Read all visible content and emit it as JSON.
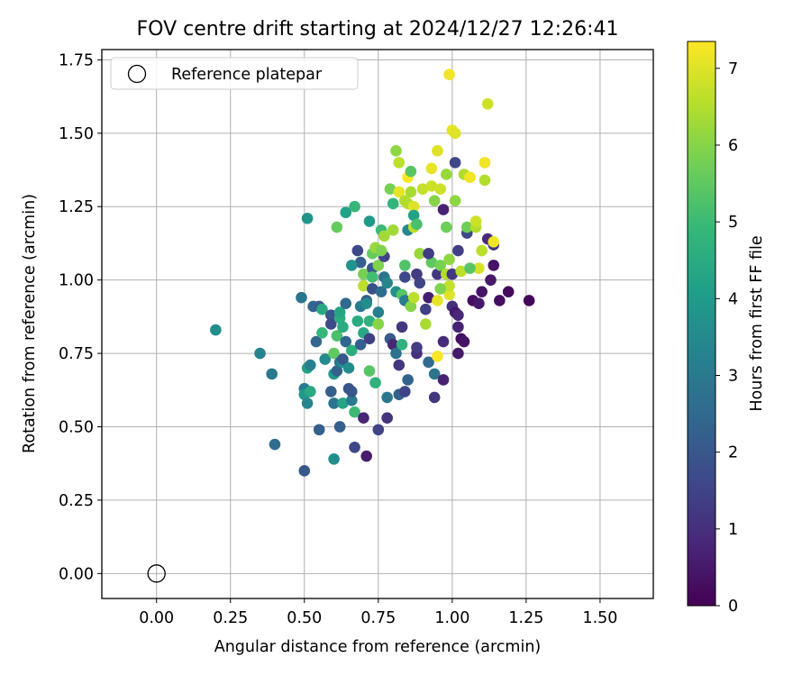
{
  "chart_data": {
    "type": "scatter",
    "title": "FOV centre drift starting at 2024/12/27 12:26:41",
    "xlabel": "Angular distance from reference (arcmin)",
    "ylabel": "Rotation from reference (arcmin)",
    "xlim": [
      -0.185,
      1.68
    ],
    "ylim": [
      -0.085,
      1.785
    ],
    "xticks": [
      "0.00",
      "0.25",
      "0.50",
      "0.75",
      "1.00",
      "1.25",
      "1.50"
    ],
    "yticks": [
      "0.00",
      "0.25",
      "0.50",
      "0.75",
      "1.00",
      "1.25",
      "1.50",
      "1.75"
    ],
    "grid": true,
    "legend": {
      "position": "top-left",
      "label": "Reference platepar"
    },
    "reference_point": {
      "x": 0.0,
      "y": 0.0
    },
    "colorbar": {
      "label": "Hours from first FF file",
      "colormap": "viridis",
      "range": [
        0,
        7.35
      ],
      "ticks": [
        "0",
        "1",
        "2",
        "3",
        "4",
        "5",
        "6",
        "7"
      ],
      "stops": [
        "#440154",
        "#482878",
        "#3e4989",
        "#31688e",
        "#26828e",
        "#1f9e89",
        "#35b779",
        "#6ece58",
        "#b5de2b",
        "#fde725"
      ]
    },
    "points": [
      [
        0.2,
        0.83,
        3.6
      ],
      [
        0.35,
        0.75,
        3.3
      ],
      [
        0.39,
        0.68,
        3.0
      ],
      [
        0.4,
        0.44,
        2.6
      ],
      [
        0.49,
        0.94,
        2.9
      ],
      [
        0.5,
        0.63,
        3.0
      ],
      [
        0.5,
        0.61,
        3.9
      ],
      [
        0.51,
        0.58,
        3.4
      ],
      [
        0.51,
        0.7,
        4.2
      ],
      [
        0.52,
        0.71,
        3.2
      ],
      [
        0.51,
        1.21,
        3.8
      ],
      [
        0.5,
        0.35,
        2.0
      ],
      [
        0.52,
        0.62,
        4.4
      ],
      [
        0.53,
        0.91,
        2.4
      ],
      [
        0.54,
        0.79,
        2.4
      ],
      [
        0.55,
        0.49,
        2.2
      ],
      [
        0.55,
        0.91,
        2.1
      ],
      [
        0.56,
        0.9,
        4.4
      ],
      [
        0.56,
        0.82,
        4.9
      ],
      [
        0.57,
        0.73,
        3.5
      ],
      [
        0.59,
        0.62,
        2.2
      ],
      [
        0.59,
        0.88,
        2.0
      ],
      [
        0.59,
        0.85,
        1.7
      ],
      [
        0.6,
        0.68,
        4.0
      ],
      [
        0.6,
        0.58,
        2.8
      ],
      [
        0.6,
        0.39,
        3.6
      ],
      [
        0.6,
        0.75,
        5.5
      ],
      [
        0.61,
        0.81,
        5.2
      ],
      [
        0.61,
        0.69,
        2.3
      ],
      [
        0.61,
        1.18,
        5.6
      ],
      [
        0.62,
        0.87,
        4.6
      ],
      [
        0.62,
        0.89,
        4.3
      ],
      [
        0.62,
        0.72,
        2.8
      ],
      [
        0.62,
        0.5,
        2.2
      ],
      [
        0.63,
        0.72,
        3.8
      ],
      [
        0.63,
        0.84,
        4.5
      ],
      [
        0.63,
        0.73,
        2.0
      ],
      [
        0.63,
        0.58,
        4.3
      ],
      [
        0.64,
        1.23,
        4.2
      ],
      [
        0.64,
        0.79,
        2.4
      ],
      [
        0.65,
        0.63,
        1.9
      ],
      [
        0.65,
        0.7,
        3.6
      ],
      [
        0.66,
        0.76,
        4.6
      ],
      [
        0.66,
        0.59,
        3.0
      ],
      [
        0.66,
        0.62,
        2.0
      ],
      [
        0.67,
        1.25,
        4.9
      ],
      [
        0.67,
        0.55,
        5.0
      ],
      [
        0.67,
        0.43,
        1.6
      ],
      [
        0.68,
        0.86,
        4.5
      ],
      [
        0.68,
        1.1,
        1.6
      ],
      [
        0.69,
        0.91,
        3.0
      ],
      [
        0.69,
        1.06,
        2.2
      ],
      [
        0.69,
        0.78,
        2.2
      ],
      [
        0.7,
        0.53,
        0.8
      ],
      [
        0.7,
        0.82,
        4.4
      ],
      [
        0.7,
        0.98,
        6.6
      ],
      [
        0.7,
        1.02,
        5.8
      ],
      [
        0.71,
        0.4,
        0.6
      ],
      [
        0.71,
        0.93,
        2.2
      ],
      [
        0.72,
        0.86,
        4.7
      ],
      [
        0.72,
        1.2,
        4.0
      ],
      [
        0.72,
        0.69,
        5.4
      ],
      [
        0.72,
        0.8,
        1.4
      ],
      [
        0.73,
        1.04,
        2.1
      ],
      [
        0.73,
        0.97,
        1.8
      ],
      [
        0.73,
        1.01,
        5.1
      ],
      [
        0.73,
        1.09,
        5.6
      ],
      [
        0.74,
        0.65,
        4.7
      ],
      [
        0.74,
        1.11,
        6.2
      ],
      [
        0.75,
        1.05,
        5.9
      ],
      [
        0.75,
        0.85,
        6.0
      ],
      [
        0.75,
        0.49,
        1.5
      ],
      [
        0.75,
        0.89,
        3.2
      ],
      [
        0.76,
        0.96,
        2.6
      ],
      [
        0.76,
        1.17,
        5.0
      ],
      [
        0.77,
        1.15,
        6.3
      ],
      [
        0.77,
        1.01,
        2.8
      ],
      [
        0.77,
        1.08,
        1.5
      ],
      [
        0.78,
        0.6,
        2.9
      ],
      [
        0.78,
        0.53,
        1.1
      ],
      [
        0.79,
        0.8,
        2.1
      ],
      [
        0.79,
        1.31,
        5.8
      ],
      [
        0.8,
        1.26,
        4.8
      ],
      [
        0.8,
        0.78,
        0.8
      ],
      [
        0.8,
        1.17,
        6.3
      ],
      [
        0.81,
        1.44,
        6.1
      ],
      [
        0.81,
        0.75,
        2.8
      ],
      [
        0.81,
        0.96,
        3.7
      ],
      [
        0.82,
        1.3,
        7.1
      ],
      [
        0.82,
        0.71,
        1.2
      ],
      [
        0.82,
        1.4,
        6.6
      ],
      [
        0.82,
        0.61,
        2.3
      ],
      [
        0.83,
        0.84,
        1.2
      ],
      [
        0.83,
        0.78,
        4.7
      ],
      [
        0.83,
        0.95,
        5.4
      ],
      [
        0.84,
        1.05,
        5.3
      ],
      [
        0.84,
        0.62,
        1.5
      ],
      [
        0.84,
        1.27,
        6.5
      ],
      [
        0.84,
        0.93,
        3.1
      ],
      [
        0.85,
        0.66,
        2.3
      ],
      [
        0.85,
        1.17,
        3.4
      ],
      [
        0.85,
        1.35,
        7.3
      ],
      [
        0.85,
        1.26,
        6.5
      ],
      [
        0.86,
        1.3,
        6.4
      ],
      [
        0.86,
        1.37,
        5.4
      ],
      [
        0.86,
        0.91,
        6.0
      ],
      [
        0.87,
        1.18,
        6.6
      ],
      [
        0.87,
        1.25,
        7.0
      ],
      [
        0.87,
        1.22,
        4.2
      ],
      [
        0.87,
        0.94,
        6.6
      ],
      [
        0.88,
        1.02,
        1.3
      ],
      [
        0.88,
        0.75,
        1.0
      ],
      [
        0.88,
        1.19,
        5.2
      ],
      [
        0.88,
        0.77,
        1.3
      ],
      [
        0.89,
        1.09,
        6.2
      ],
      [
        0.9,
        1.31,
        6.7
      ],
      [
        0.91,
        0.85,
        6.4
      ],
      [
        0.91,
        0.9,
        1.4
      ],
      [
        0.92,
        0.72,
        2.5
      ],
      [
        0.92,
        0.94,
        0.6
      ],
      [
        0.93,
        1.32,
        6.8
      ],
      [
        0.93,
        1.06,
        5.5
      ],
      [
        0.93,
        1.38,
        7.1
      ],
      [
        0.94,
        0.68,
        2.9
      ],
      [
        0.94,
        0.6,
        1.2
      ],
      [
        0.94,
        1.27,
        6.0
      ],
      [
        0.95,
        1.44,
        7.0
      ],
      [
        0.95,
        0.74,
        7.3
      ],
      [
        0.95,
        1.02,
        1.2
      ],
      [
        0.95,
        0.93,
        7.1
      ],
      [
        0.96,
        1.05,
        5.8
      ],
      [
        0.96,
        1.31,
        6.8
      ],
      [
        0.97,
        0.79,
        0.9
      ],
      [
        0.97,
        0.66,
        0.7
      ],
      [
        0.97,
        1.24,
        0.7
      ],
      [
        0.98,
        1.36,
        6.2
      ],
      [
        0.98,
        1.18,
        5.7
      ],
      [
        0.98,
        1.02,
        6.5
      ],
      [
        0.99,
        0.95,
        7.0
      ],
      [
        0.99,
        1.7,
        7.2
      ],
      [
        0.99,
        0.98,
        6.7
      ],
      [
        0.99,
        1.07,
        6.1
      ],
      [
        1.0,
        1.51,
        7.1
      ],
      [
        1.0,
        1.02,
        1.2
      ],
      [
        1.0,
        0.91,
        1.0
      ],
      [
        1.01,
        0.89,
        0.5
      ],
      [
        1.01,
        1.5,
        7.0
      ],
      [
        1.01,
        1.27,
        6.1
      ],
      [
        1.01,
        1.4,
        1.6
      ],
      [
        1.02,
        1.1,
        1.4
      ],
      [
        1.02,
        0.84,
        0.7
      ],
      [
        1.02,
        0.88,
        0.8
      ],
      [
        1.02,
        0.75,
        0.5
      ],
      [
        1.03,
        1.03,
        6.6
      ],
      [
        1.03,
        0.8,
        0.3
      ],
      [
        1.04,
        1.36,
        6.5
      ],
      [
        1.04,
        0.79,
        0.4
      ],
      [
        1.05,
        1.16,
        1.6
      ],
      [
        1.05,
        1.18,
        5.7
      ],
      [
        1.06,
        1.35,
        7.2
      ],
      [
        1.07,
        0.93,
        0.3
      ],
      [
        1.08,
        1.18,
        6.5
      ],
      [
        1.08,
        1.2,
        6.8
      ],
      [
        1.09,
        1.04,
        6.9
      ],
      [
        1.09,
        0.92,
        0.5
      ],
      [
        1.1,
        0.96,
        0.4
      ],
      [
        1.1,
        1.1,
        6.6
      ],
      [
        1.11,
        1.4,
        7.2
      ],
      [
        1.11,
        1.34,
        6.5
      ],
      [
        1.12,
        1.6,
        6.8
      ],
      [
        1.12,
        1.14,
        0.9
      ],
      [
        1.13,
        1.0,
        0.5
      ],
      [
        1.14,
        1.12,
        1.2
      ],
      [
        1.14,
        1.13,
        7.2
      ],
      [
        1.14,
        1.05,
        0.4
      ],
      [
        1.16,
        0.93,
        0.3
      ],
      [
        1.19,
        0.96,
        0.2
      ],
      [
        1.26,
        0.93,
        0.1
      ],
      [
        0.84,
        1.01,
        1.6
      ],
      [
        0.76,
        1.1,
        5.9
      ],
      [
        0.66,
        1.05,
        3.8
      ],
      [
        0.78,
        0.99,
        3.4
      ],
      [
        0.92,
        1.09,
        1.3
      ],
      [
        0.89,
        0.99,
        1.5
      ],
      [
        0.71,
        0.92,
        3.6
      ],
      [
        0.64,
        0.92,
        2.5
      ],
      [
        0.96,
        0.97,
        5.9
      ],
      [
        1.06,
        1.04,
        5.4
      ]
    ]
  }
}
